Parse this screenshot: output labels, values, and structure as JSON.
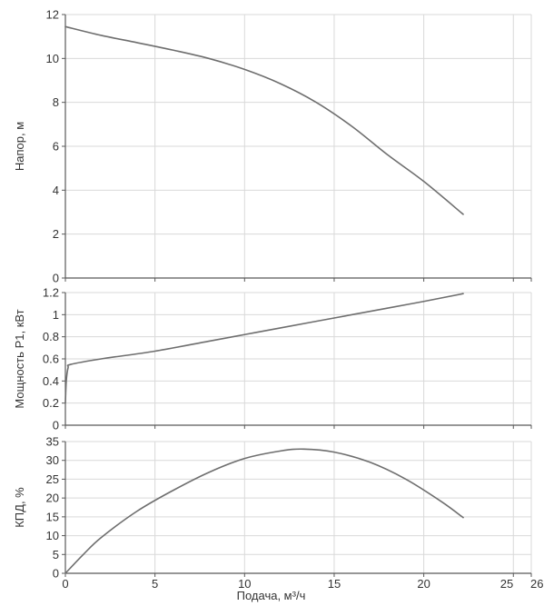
{
  "chart_data": [
    {
      "type": "line",
      "ylabel": "Напор, м",
      "xlim": [
        0,
        26
      ],
      "ylim": [
        0,
        12
      ],
      "x_ticks": [
        0,
        5,
        10,
        15,
        20,
        25,
        26
      ],
      "y_ticks": [
        0,
        2,
        4,
        6,
        8,
        10,
        12
      ],
      "grid": true,
      "series": [
        {
          "x": [
            0,
            2,
            4,
            6,
            8,
            10,
            12,
            14,
            16,
            18,
            20,
            22.2
          ],
          "y": [
            11.45,
            11.05,
            10.72,
            10.38,
            10.0,
            9.5,
            8.85,
            8.0,
            6.9,
            5.6,
            4.4,
            2.9
          ],
          "color": "#6e6e6e"
        }
      ]
    },
    {
      "type": "line",
      "ylabel": "Мощность P1, кВт",
      "xlim": [
        0,
        26
      ],
      "ylim": [
        0,
        1.2
      ],
      "x_ticks": [
        0,
        5,
        10,
        15,
        20,
        25,
        26
      ],
      "y_ticks": [
        0,
        0.2,
        0.4,
        0.6,
        0.8,
        1,
        1.2
      ],
      "grid": true,
      "series": [
        {
          "x": [
            0,
            0.05,
            0.15,
            0.3,
            2,
            5,
            8,
            10,
            12,
            15,
            18,
            20,
            22.2
          ],
          "y": [
            0.2,
            0.4,
            0.52,
            0.55,
            0.6,
            0.67,
            0.76,
            0.82,
            0.88,
            0.97,
            1.06,
            1.12,
            1.19
          ],
          "color": "#6e6e6e"
        }
      ]
    },
    {
      "type": "line",
      "xlabel": "Подача, м³/ч",
      "ylabel": "КПД, %",
      "xlim": [
        0,
        26
      ],
      "ylim": [
        0,
        35
      ],
      "x_ticks": [
        0,
        5,
        10,
        15,
        20,
        25,
        26
      ],
      "y_ticks": [
        0,
        5,
        10,
        15,
        20,
        25,
        30,
        35
      ],
      "grid": true,
      "series": [
        {
          "x": [
            0,
            1,
            2,
            4,
            6,
            8,
            10,
            12,
            13.3,
            15,
            17,
            19,
            21,
            22.2
          ],
          "y": [
            0,
            5,
            9.5,
            16.5,
            22,
            26.8,
            30.5,
            32.5,
            33,
            32.2,
            29.5,
            25,
            19,
            14.8
          ],
          "color": "#6e6e6e"
        }
      ]
    }
  ]
}
